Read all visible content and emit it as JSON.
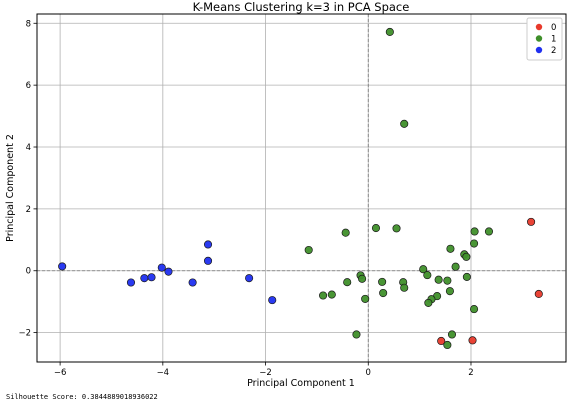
{
  "chart_data": {
    "type": "scatter",
    "title": "K-Means Clustering k=3 in PCA Space",
    "xlabel": "Principal Component 1",
    "ylabel": "Principal Component 2",
    "xlim": [
      -6.45,
      3.85
    ],
    "ylim": [
      -2.95,
      8.3
    ],
    "xticks": [
      -6,
      -4,
      -2,
      0,
      2
    ],
    "yticks": [
      -2,
      0,
      2,
      4,
      6,
      8
    ],
    "grid": true,
    "reference_lines": {
      "x": 0,
      "y": 0,
      "style": "dashed"
    },
    "legend_position": "top-right",
    "series": [
      {
        "name": "0",
        "color": "#e8392b",
        "points": [
          [
            3.17,
            1.58
          ],
          [
            3.32,
            -0.75
          ],
          [
            1.42,
            -2.27
          ],
          [
            2.03,
            -2.25
          ]
        ]
      },
      {
        "name": "1",
        "color": "#3f8f2a",
        "points": [
          [
            0.42,
            7.72
          ],
          [
            0.7,
            4.75
          ],
          [
            -0.44,
            1.23
          ],
          [
            0.15,
            1.38
          ],
          [
            0.55,
            1.37
          ],
          [
            -1.16,
            0.67
          ],
          [
            2.07,
            1.27
          ],
          [
            2.35,
            1.27
          ],
          [
            2.06,
            0.88
          ],
          [
            1.6,
            0.71
          ],
          [
            1.87,
            0.53
          ],
          [
            1.91,
            0.45
          ],
          [
            1.7,
            0.13
          ],
          [
            1.07,
            0.05
          ],
          [
            1.15,
            -0.14
          ],
          [
            1.92,
            -0.2
          ],
          [
            -0.15,
            -0.15
          ],
          [
            -0.12,
            -0.26
          ],
          [
            -0.41,
            -0.37
          ],
          [
            0.27,
            -0.36
          ],
          [
            0.68,
            -0.37
          ],
          [
            1.37,
            -0.29
          ],
          [
            1.54,
            -0.32
          ],
          [
            0.7,
            -0.55
          ],
          [
            0.29,
            -0.72
          ],
          [
            1.59,
            -0.66
          ],
          [
            -0.71,
            -0.77
          ],
          [
            -0.88,
            -0.8
          ],
          [
            -0.06,
            -0.91
          ],
          [
            1.34,
            -0.82
          ],
          [
            1.23,
            -0.92
          ],
          [
            1.17,
            -1.04
          ],
          [
            2.06,
            -1.24
          ],
          [
            1.63,
            -2.06
          ],
          [
            -0.23,
            -2.06
          ],
          [
            1.54,
            -2.4
          ]
        ]
      },
      {
        "name": "2",
        "color": "#1f2ff0",
        "points": [
          [
            -5.96,
            0.14
          ],
          [
            -4.62,
            -0.38
          ],
          [
            -4.36,
            -0.24
          ],
          [
            -4.22,
            -0.21
          ],
          [
            -4.02,
            0.1
          ],
          [
            -3.89,
            -0.03
          ],
          [
            -3.42,
            -0.38
          ],
          [
            -3.12,
            0.85
          ],
          [
            -3.12,
            0.32
          ],
          [
            -2.32,
            -0.24
          ],
          [
            -1.87,
            -0.95
          ]
        ]
      }
    ]
  },
  "footer": {
    "silhouette": "Silhouette Score: 0.3844889018936022"
  }
}
